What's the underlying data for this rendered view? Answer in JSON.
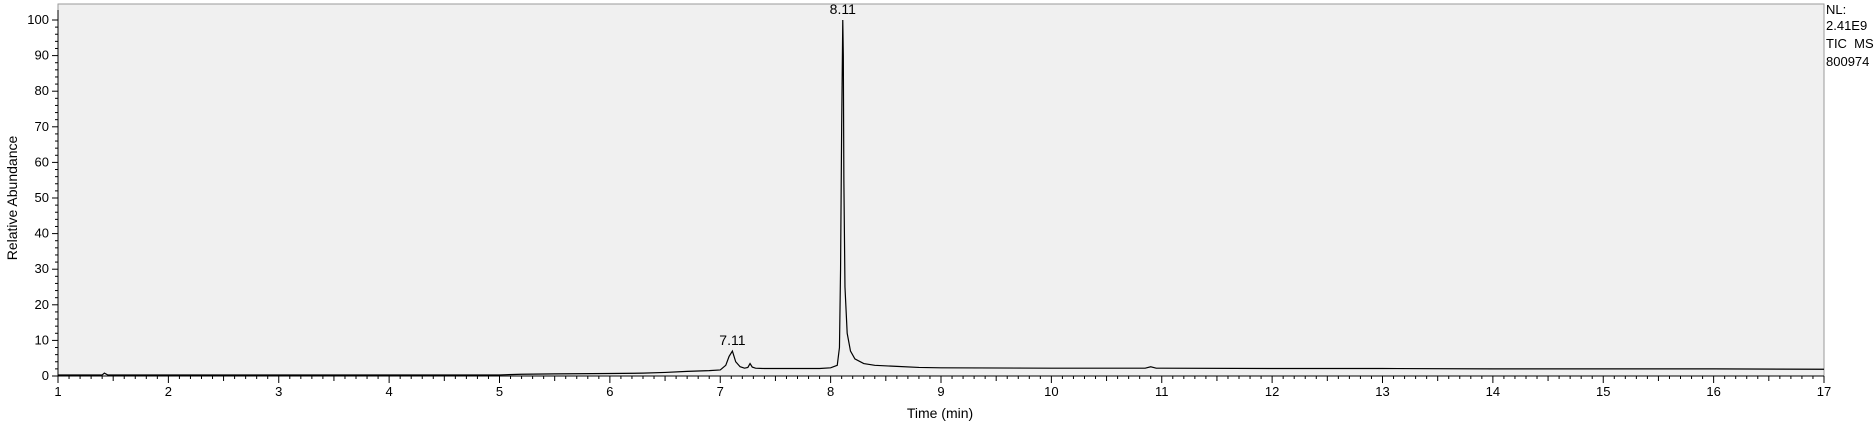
{
  "chart_data": {
    "type": "line",
    "xlabel": "Time (min)",
    "ylabel": "Relative Abundance",
    "xlim": [
      1,
      17
    ],
    "ylim": [
      0,
      100
    ],
    "x_ticks": [
      "1",
      "2",
      "3",
      "4",
      "5",
      "6",
      "7",
      "8",
      "9",
      "10",
      "11",
      "12",
      "13",
      "14",
      "15",
      "16",
      "17"
    ],
    "y_ticks": [
      "0",
      "10",
      "20",
      "30",
      "40",
      "50",
      "60",
      "70",
      "80",
      "90",
      "100"
    ],
    "annotations": [
      {
        "label": "7.11",
        "x": 7.11,
        "y": 7
      },
      {
        "label": "8.11",
        "x": 8.11,
        "y": 100
      }
    ],
    "info": {
      "nl_label": "NL:",
      "nl_value": "2.41E9",
      "trace": "TIC  MS",
      "sample": "800974"
    },
    "grid": false,
    "series": [
      {
        "x": [
          1.0,
          1.4,
          1.42,
          1.45,
          1.5,
          2.0,
          3.0,
          4.0,
          5.0,
          5.2,
          5.5,
          6.0,
          6.3,
          6.5,
          6.7,
          6.9,
          7.0,
          7.05,
          7.08,
          7.11,
          7.14,
          7.18,
          7.22,
          7.25,
          7.27,
          7.29,
          7.32,
          7.4,
          7.6,
          7.9,
          8.0,
          8.06,
          8.08,
          8.09,
          8.1,
          8.11,
          8.115,
          8.12,
          8.13,
          8.15,
          8.18,
          8.22,
          8.3,
          8.4,
          8.6,
          8.8,
          9.0,
          10.0,
          10.85,
          10.9,
          10.95,
          11.0,
          12.0,
          13.0,
          14.0,
          15.0,
          16.0,
          17.0
        ],
        "y": [
          0.3,
          0.3,
          0.8,
          0.3,
          0.3,
          0.3,
          0.3,
          0.3,
          0.3,
          0.5,
          0.6,
          0.7,
          0.8,
          1.0,
          1.3,
          1.5,
          1.7,
          3.0,
          5.5,
          7.0,
          4.0,
          2.6,
          2.2,
          2.4,
          3.5,
          2.5,
          2.2,
          2.1,
          2.1,
          2.1,
          2.3,
          3.0,
          8.0,
          30.0,
          70.0,
          100.0,
          90.0,
          55.0,
          25.0,
          12.0,
          7.0,
          4.8,
          3.5,
          3.0,
          2.7,
          2.4,
          2.3,
          2.2,
          2.2,
          2.6,
          2.2,
          2.2,
          2.1,
          2.1,
          2.0,
          2.0,
          2.0,
          1.9
        ]
      }
    ]
  }
}
